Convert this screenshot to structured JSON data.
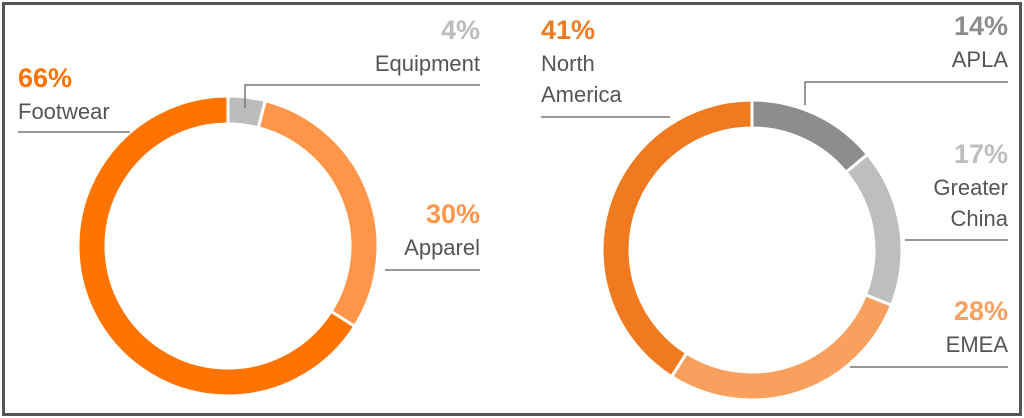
{
  "chart_data": [
    {
      "type": "pie",
      "categories": [
        "Equipment",
        "Apparel",
        "Footwear"
      ],
      "values": [
        4,
        30,
        66
      ],
      "value_labels": [
        "4%",
        "30%",
        "66%"
      ],
      "colors": [
        "#bcbcbc",
        "#ff9549",
        "#ff7300"
      ]
    },
    {
      "type": "pie",
      "categories": [
        "APLA",
        "Greater China",
        "EMEA",
        "North America"
      ],
      "values": [
        14,
        17,
        28,
        41
      ],
      "value_labels": [
        "14%",
        "17%",
        "28%",
        "41%"
      ],
      "colors": [
        "#8d8d8d",
        "#bdbec0",
        "#f9a05f",
        "#f07a20"
      ]
    }
  ]
}
